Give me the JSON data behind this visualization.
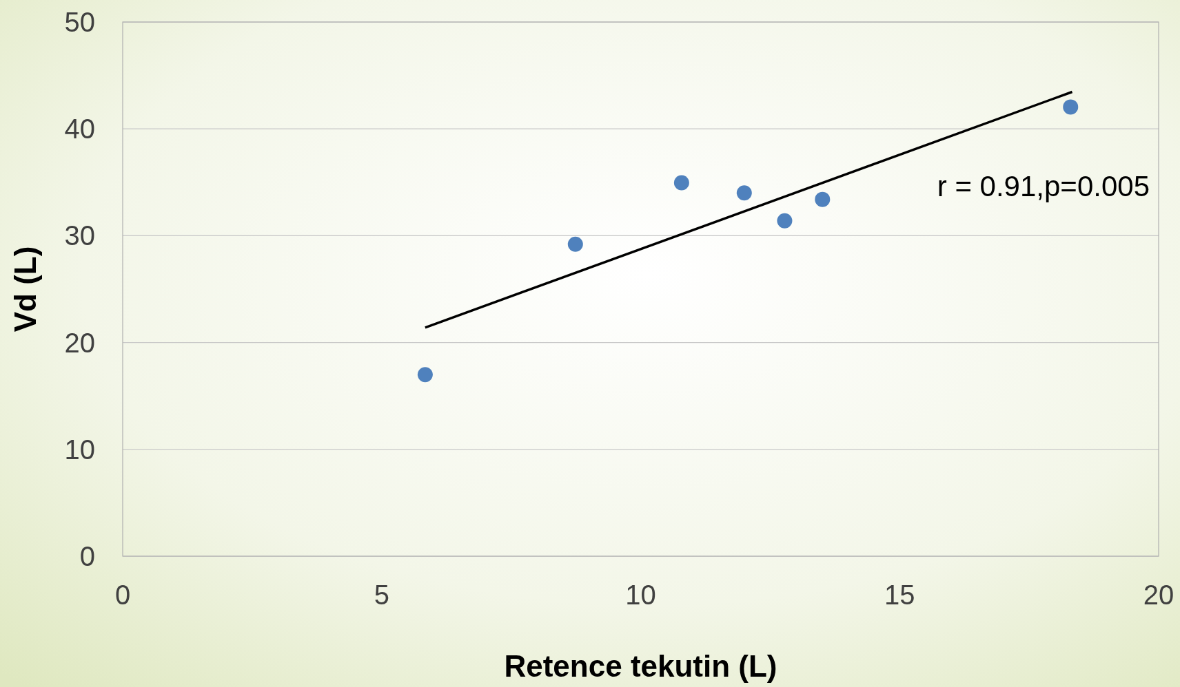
{
  "chart_data": {
    "type": "scatter",
    "xlabel": "Retence tekutin (L)",
    "ylabel": "Vd (L)",
    "xlim": [
      0,
      20
    ],
    "xticks": [
      0,
      5,
      10,
      15,
      20
    ],
    "ylim": [
      0,
      50
    ],
    "yticks": [
      0,
      10,
      20,
      30,
      40,
      50
    ],
    "grid": "y",
    "marker": "circle",
    "series": [
      {
        "color": "#4f81bd",
        "x": [
          5.84,
          8.74,
          10.79,
          12.0,
          12.78,
          13.51,
          18.3
        ],
        "values": [
          17.0,
          29.2,
          34.95,
          34.0,
          31.4,
          33.4,
          42.05
        ]
      },
      {
        "type": "line",
        "color": "#000000",
        "x": [
          5.84,
          18.33
        ],
        "values": [
          21.4,
          43.46
        ],
        "line_style": "solid",
        "marker": "none"
      }
    ],
    "annotations": [
      "r = 0.91,p=0.005"
    ]
  }
}
